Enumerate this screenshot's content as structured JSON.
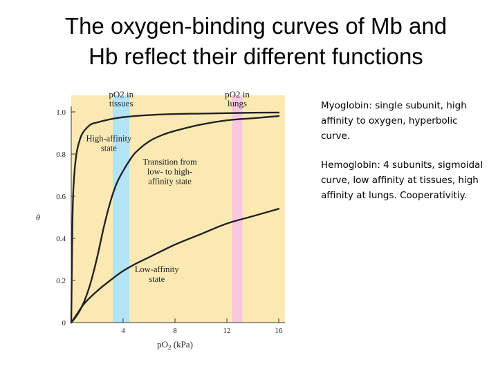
{
  "slide": {
    "title": "The oxygen-binding curves of Mb and\nHb reflect their different functions",
    "notes": [
      "Myoglobin: single subunit, high affinity to oxygen, hyperbolic curve.",
      "Hemoglobin: 4 subunits, sigmoidal curve, low affinity at tissues, high affinity at lungs. Cooperativitiy."
    ]
  },
  "chart_data": {
    "type": "line",
    "xlabel": "pO2 (kPa)",
    "ylabel": "θ",
    "xlim": [
      0,
      16
    ],
    "ylim": [
      0,
      1.0
    ],
    "x_ticks": [
      4,
      8,
      12,
      16
    ],
    "x_tick_labels": [
      "4",
      "8",
      "12",
      "16"
    ],
    "y_ticks": [
      0,
      0.2,
      0.4,
      0.6,
      0.8,
      1.0
    ],
    "y_tick_labels": [
      "0",
      "0.2",
      "0.4",
      "0.6",
      "0.8",
      "1.0"
    ],
    "grid": false,
    "colors": {
      "background": "#fbe9b4",
      "tissues_band": "#b3e4f5",
      "lungs_band": "#f9c8e0",
      "curve": "#222222"
    },
    "bands": [
      {
        "label": "pO2 in tissues",
        "x_range": [
          3.2,
          4.5
        ]
      },
      {
        "label": "pO2 in lungs",
        "x_range": [
          12.4,
          13.2
        ]
      }
    ],
    "series": [
      {
        "x": [
          0,
          0.1,
          0.2,
          0.4,
          0.7,
          1.0,
          1.5,
          2,
          3,
          4,
          6,
          8,
          10,
          12,
          14,
          16
        ],
        "values": [
          0,
          0.5,
          0.67,
          0.8,
          0.875,
          0.91,
          0.94,
          0.95,
          0.965,
          0.975,
          0.985,
          0.99,
          0.992,
          0.994,
          0.996,
          0.997
        ]
      },
      {
        "x": [
          0,
          0.5,
          1,
          1.5,
          2,
          2.5,
          3,
          3.5,
          4,
          4.5,
          5,
          6,
          7,
          8,
          10,
          12,
          14,
          16
        ],
        "values": [
          0,
          0.04,
          0.1,
          0.19,
          0.31,
          0.45,
          0.57,
          0.66,
          0.72,
          0.77,
          0.81,
          0.86,
          0.89,
          0.91,
          0.94,
          0.96,
          0.97,
          0.98
        ]
      },
      {
        "x": [
          0,
          0.5,
          1,
          2,
          3,
          4,
          5,
          6,
          8,
          10,
          12,
          14,
          16
        ],
        "values": [
          0,
          0.045,
          0.09,
          0.15,
          0.2,
          0.245,
          0.28,
          0.31,
          0.37,
          0.42,
          0.47,
          0.505,
          0.54
        ]
      }
    ],
    "annotations": [
      {
        "text": "High-affinity\nstate",
        "at": [
          2.9,
          0.86
        ]
      },
      {
        "text": "Transition from\nlow- to high-\naffinity state",
        "at": [
          7.6,
          0.75
        ]
      },
      {
        "text": "Low-affinity\nstate",
        "at": [
          6.6,
          0.24
        ]
      }
    ]
  }
}
